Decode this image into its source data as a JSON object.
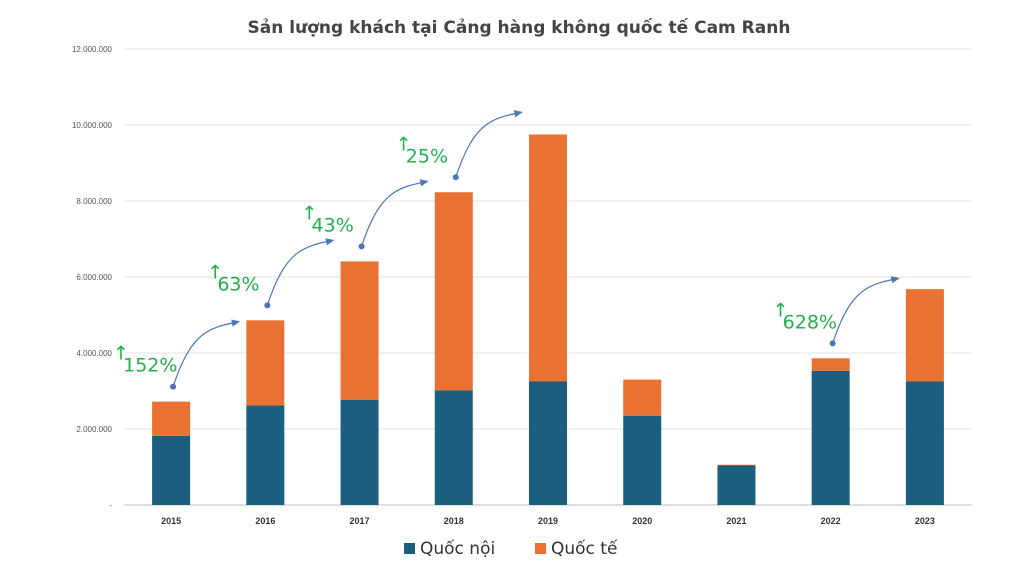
{
  "chart_data": {
    "type": "bar",
    "stacked": true,
    "title": "Sản lượng khách tại Cảng hàng không quốc tế Cam Ranh",
    "categories": [
      "2015",
      "2016",
      "2017",
      "2018",
      "2019",
      "2020",
      "2021",
      "2022",
      "2023"
    ],
    "series": [
      {
        "name": "Quốc nội",
        "color": "#1b5e80",
        "values": [
          1820000,
          2620000,
          2770000,
          3020000,
          3250000,
          2350000,
          1040000,
          3530000,
          3250000
        ]
      },
      {
        "name": "Quốc tế",
        "color": "#e97132",
        "values": [
          900000,
          2240000,
          3640000,
          5210000,
          6500000,
          950000,
          20000,
          330000,
          2430000
        ]
      }
    ],
    "ylim": [
      0,
      12000000
    ],
    "yticks": [
      {
        "value": 0,
        "label": "-"
      },
      {
        "value": 2000000,
        "label": "2.000.000"
      },
      {
        "value": 4000000,
        "label": "4.000.000"
      },
      {
        "value": 6000000,
        "label": "6.000.000"
      },
      {
        "value": 8000000,
        "label": "8.000.000"
      },
      {
        "value": 10000000,
        "label": "10.000.000"
      },
      {
        "value": 12000000,
        "label": "12.000.000"
      }
    ],
    "grid": true,
    "legend_position": "bottom",
    "annotations": [
      {
        "text": "152%",
        "year": "2015"
      },
      {
        "text": "63%",
        "year": "2016"
      },
      {
        "text": "43%",
        "year": "2017"
      },
      {
        "text": "25%",
        "year": "2018"
      },
      {
        "text": "628%",
        "year": "2022"
      }
    ]
  }
}
